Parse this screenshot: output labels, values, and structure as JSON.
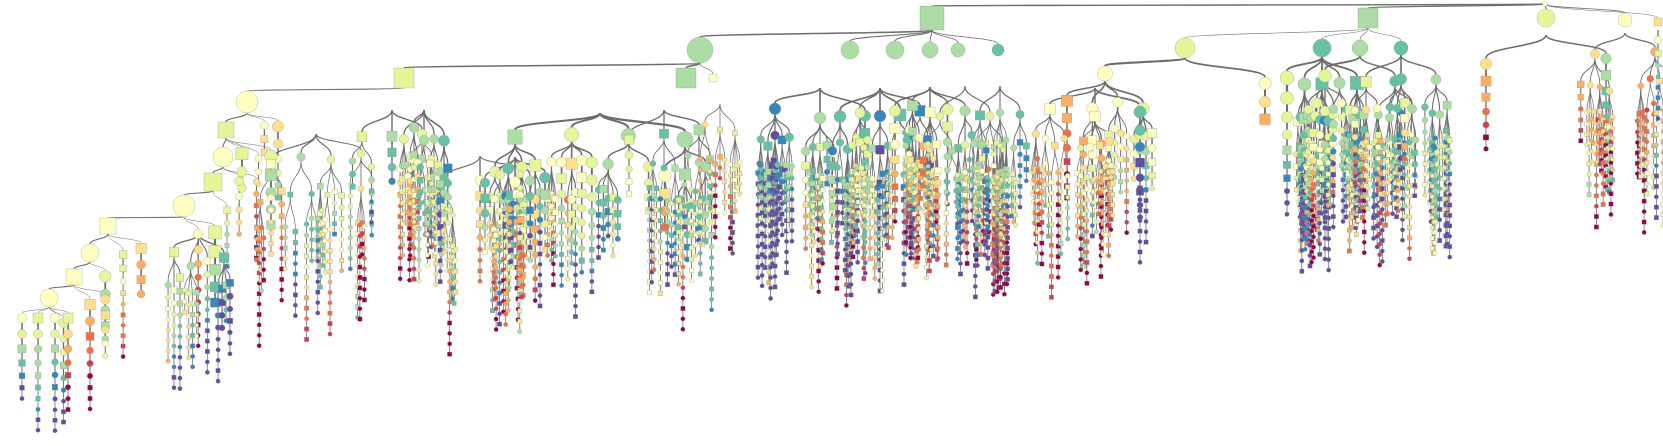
{
  "diagram": {
    "type": "tree",
    "node_shapes": [
      "circle",
      "square"
    ],
    "palette": [
      "#9e0142",
      "#d53e4f",
      "#f46d43",
      "#fdae61",
      "#fee08b",
      "#ffffbf",
      "#e6f598",
      "#abdda4",
      "#66c2a5",
      "#3288bd",
      "#5e4fa2"
    ],
    "edge_color": "#6d6d6d",
    "background": "#ffffff",
    "node_labels_legible": false
  }
}
